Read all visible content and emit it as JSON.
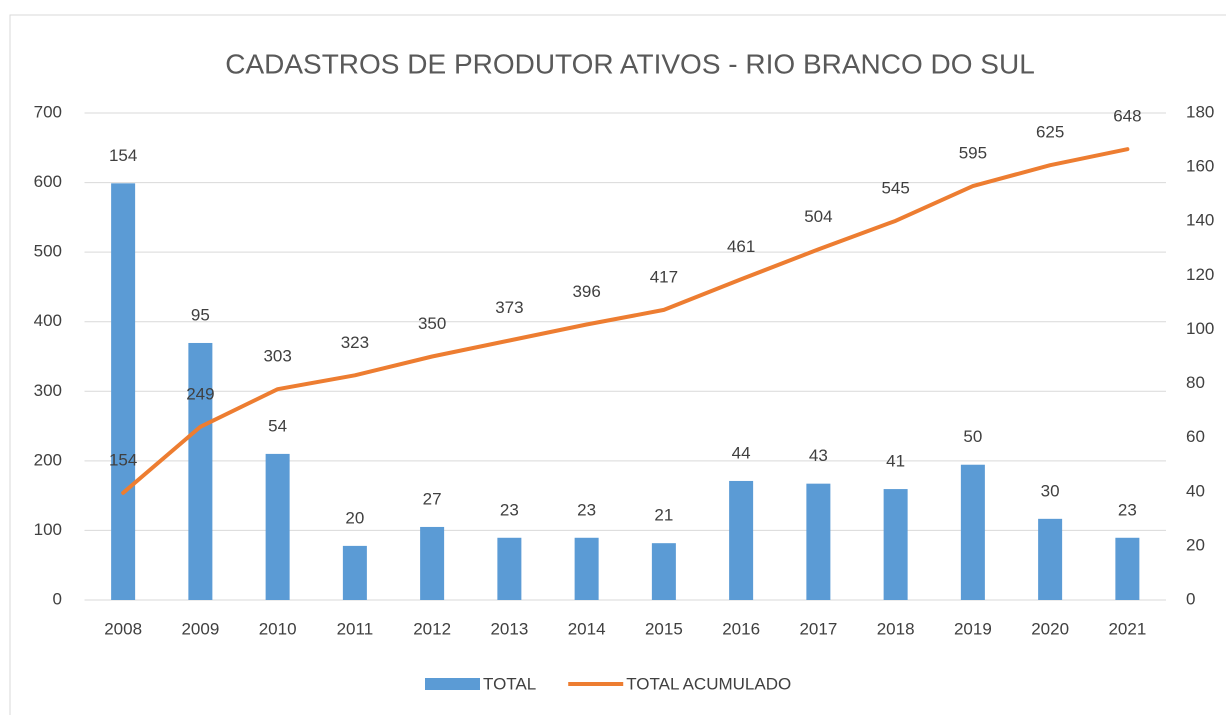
{
  "chart_data": {
    "type": "bar",
    "title": "CADASTROS DE PRODUTOR ATIVOS - RIO BRANCO DO SUL",
    "categories": [
      "2008",
      "2009",
      "2010",
      "2011",
      "2012",
      "2013",
      "2014",
      "2015",
      "2016",
      "2017",
      "2018",
      "2019",
      "2020",
      "2021"
    ],
    "series": [
      {
        "name": "TOTAL",
        "type": "bar",
        "axis": "y2",
        "color": "#5b9bd5",
        "values": [
          154,
          95,
          54,
          20,
          27,
          23,
          23,
          21,
          44,
          43,
          41,
          50,
          30,
          23
        ]
      },
      {
        "name": "TOTAL ACUMULADO",
        "type": "line",
        "axis": "y",
        "color": "#ed7d31",
        "values": [
          154,
          249,
          303,
          323,
          350,
          373,
          396,
          417,
          461,
          504,
          545,
          595,
          625,
          648
        ]
      }
    ],
    "ylim": [
      0,
      700
    ],
    "yticks": [
      0,
      100,
      200,
      300,
      400,
      500,
      600,
      700
    ],
    "y2lim": [
      0,
      180
    ],
    "y2ticks": [
      0,
      20,
      40,
      60,
      80,
      100,
      120,
      140,
      160,
      180
    ],
    "grid": true,
    "legend": "bottom"
  }
}
